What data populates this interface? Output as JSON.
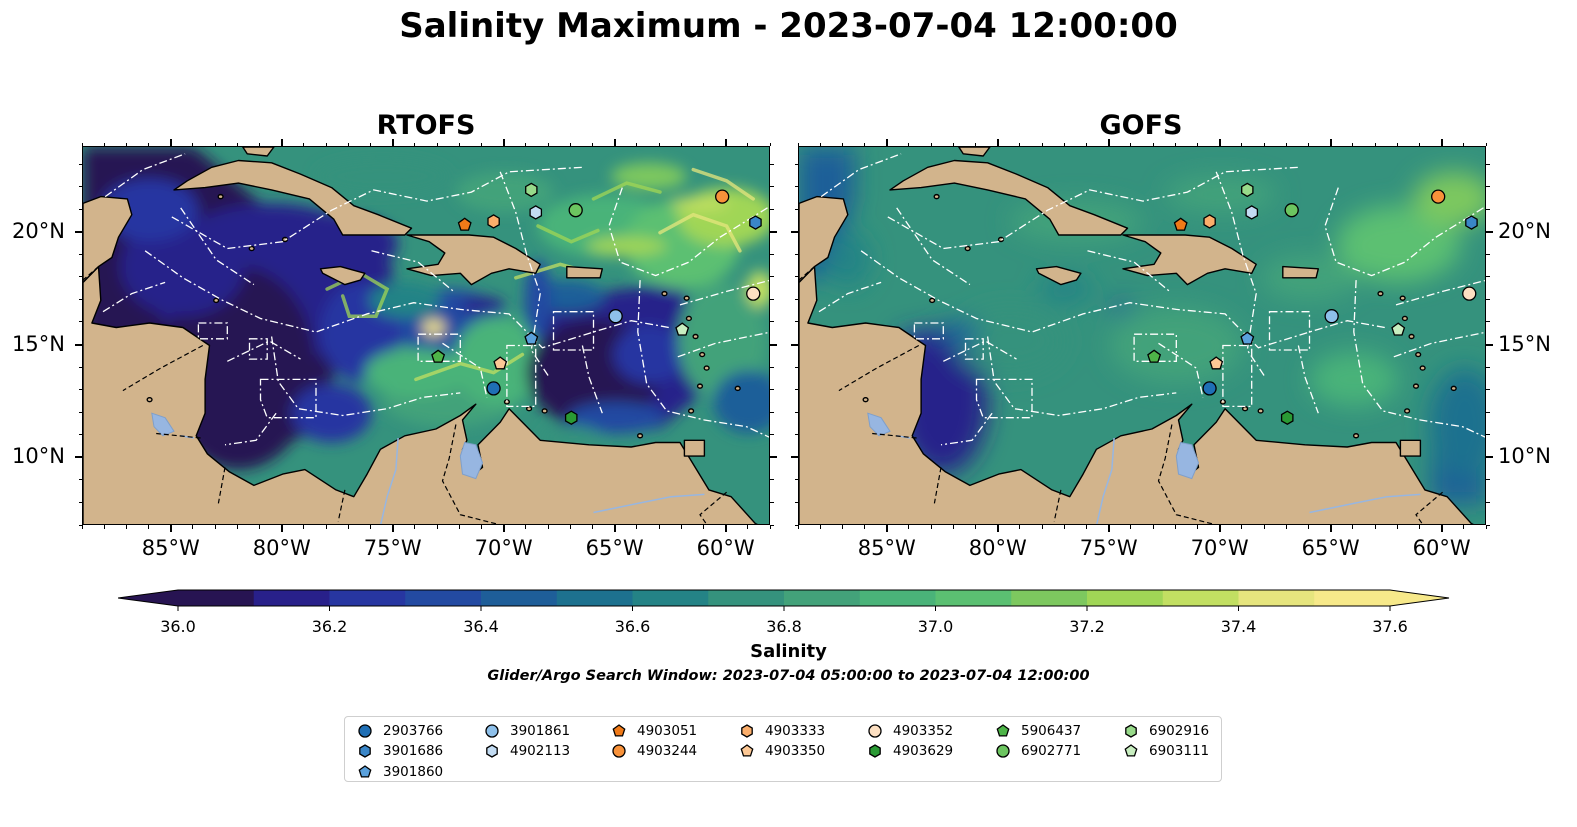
{
  "title": "Salinity Maximum - 2023-07-04 12:00:00",
  "panels": [
    {
      "title": "RTOFS",
      "variant": "rtofs"
    },
    {
      "title": "GOFS",
      "variant": "gofs"
    }
  ],
  "map": {
    "lon_range": [
      -89,
      -58
    ],
    "lat_range": [
      7,
      23.8
    ],
    "lon_ticks": [
      "85°W",
      "80°W",
      "75°W",
      "70°W",
      "65°W",
      "60°W"
    ],
    "lat_ticks": [
      "20°N",
      "15°N",
      "10°N"
    ],
    "land_color": "#d2b48c",
    "lake_color": "#97b6e1"
  },
  "colorbar": {
    "label": "Salinity",
    "ticks": [
      "36.0",
      "36.2",
      "36.4",
      "36.6",
      "36.8",
      "37.0",
      "37.2",
      "37.4",
      "37.6"
    ],
    "range": [
      36.0,
      37.6
    ],
    "colors": [
      "#271452",
      "#28208a",
      "#2736a1",
      "#234aa2",
      "#1e5e99",
      "#1d718f",
      "#248386",
      "#35927d",
      "#43a27a",
      "#4ab379",
      "#5bc072",
      "#7dc85f",
      "#a0d656",
      "#c2df62",
      "#e6e57e",
      "#f7e98a"
    ]
  },
  "search_window": "Glider/Argo Search Window: 2023-07-04 05:00:00 to 2023-07-04 12:00:00",
  "legend": [
    {
      "id": "2903766",
      "shape": "circle",
      "color": "#1f6fb5"
    },
    {
      "id": "3901686",
      "shape": "hexagon",
      "color": "#3a86c8"
    },
    {
      "id": "3901860",
      "shape": "pentagon",
      "color": "#5aa1dc"
    },
    {
      "id": "3901861",
      "shape": "circle",
      "color": "#8ec0ea"
    },
    {
      "id": "4902113",
      "shape": "hexagon",
      "color": "#c3dcf3"
    },
    {
      "id": "4903051",
      "shape": "pentagon",
      "color": "#f07a18"
    },
    {
      "id": "4903244",
      "shape": "circle",
      "color": "#f8923a"
    },
    {
      "id": "4903333",
      "shape": "hexagon",
      "color": "#fbae6b"
    },
    {
      "id": "4903350",
      "shape": "pentagon",
      "color": "#fdc895"
    },
    {
      "id": "4903352",
      "shape": "circle",
      "color": "#fde0c2"
    },
    {
      "id": "4903629",
      "shape": "hexagon",
      "color": "#2a9a34"
    },
    {
      "id": "5906437",
      "shape": "pentagon",
      "color": "#4eb548"
    },
    {
      "id": "6902771",
      "shape": "circle",
      "color": "#6cc560"
    },
    {
      "id": "6902916",
      "shape": "hexagon",
      "color": "#98da8a"
    },
    {
      "id": "6903111",
      "shape": "pentagon",
      "color": "#c8eec0"
    }
  ],
  "floats": [
    {
      "id": "4903051",
      "lon": -71.8,
      "lat": 20.35
    },
    {
      "id": "4903333",
      "lon": -70.5,
      "lat": 20.5
    },
    {
      "id": "6902916",
      "lon": -68.8,
      "lat": 21.9
    },
    {
      "id": "4902113",
      "lon": -68.6,
      "lat": 20.9
    },
    {
      "id": "6902771",
      "lon": -66.8,
      "lat": 21.0
    },
    {
      "id": "4903244",
      "lon": -60.2,
      "lat": 21.6
    },
    {
      "id": "3901686",
      "lon": -58.7,
      "lat": 20.45
    },
    {
      "id": "4903352",
      "lon": -58.8,
      "lat": 17.3
    },
    {
      "id": "3901861",
      "lon": -65.0,
      "lat": 16.3
    },
    {
      "id": "6903111",
      "lon": -62.0,
      "lat": 15.7
    },
    {
      "id": "3901860",
      "lon": -68.8,
      "lat": 15.3
    },
    {
      "id": "5906437",
      "lon": -73.0,
      "lat": 14.5
    },
    {
      "id": "4903350",
      "lon": -70.2,
      "lat": 14.2
    },
    {
      "id": "2903766",
      "lon": -70.5,
      "lat": 13.1
    },
    {
      "id": "4903629",
      "lon": -67.0,
      "lat": 11.8
    }
  ]
}
